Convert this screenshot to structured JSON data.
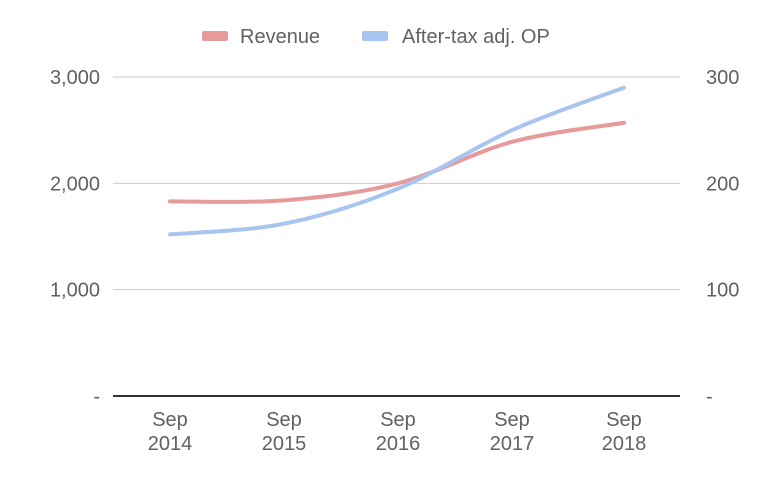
{
  "chart_data": {
    "type": "line",
    "title": "",
    "x": [
      "Sep 2014",
      "Sep 2015",
      "Sep 2016",
      "Sep 2017",
      "Sep 2018"
    ],
    "x_tick_lines": [
      [
        "Sep",
        "2014"
      ],
      [
        "Sep",
        "2015"
      ],
      [
        "Sep",
        "2016"
      ],
      [
        "Sep",
        "2017"
      ],
      [
        "Sep",
        "2018"
      ]
    ],
    "series": [
      {
        "name": "Revenue",
        "axis": "left",
        "color": "#e69a9a",
        "values": [
          1830,
          1840,
          2000,
          2390,
          2570
        ]
      },
      {
        "name": "After-tax adj. OP",
        "axis": "right",
        "color": "#a8c4f0",
        "values": [
          152,
          162,
          195,
          250,
          290
        ]
      }
    ],
    "y_left": {
      "ylim": [
        0,
        3000
      ],
      "ticks": [
        0,
        1000,
        2000,
        3000
      ],
      "tick_labels": [
        "-",
        "1,000",
        "2,000",
        "3,000"
      ]
    },
    "y_right": {
      "ylim": [
        0,
        300
      ],
      "ticks": [
        0,
        100,
        200,
        300
      ],
      "tick_labels": [
        "-",
        "100",
        "200",
        "300"
      ]
    },
    "grid": true,
    "legend": "top-center"
  }
}
